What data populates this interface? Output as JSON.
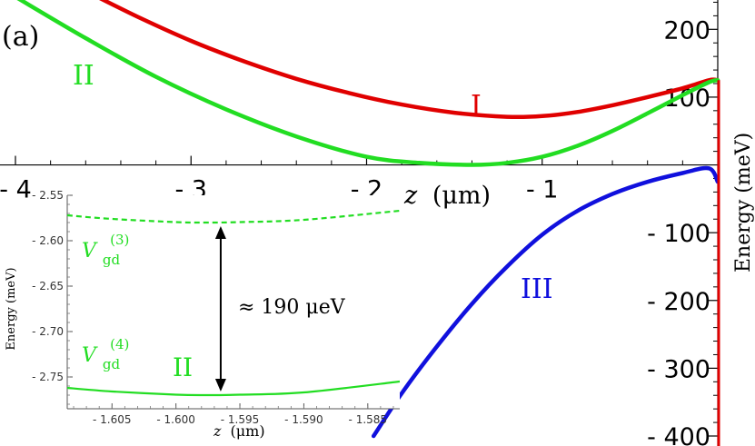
{
  "panel_label": "(a)",
  "chart_data": [
    {
      "type": "line",
      "xlabel_var": "z",
      "xlabel_unit": "(μm)",
      "ylabel": "Energy (meV)",
      "xlim": [
        -4.0,
        0.0
      ],
      "ylim": [
        -400,
        250
      ],
      "x_ticks": [
        -4,
        -3,
        -2,
        -1
      ],
      "x_tick_labels": [
        "- 4",
        "- 3",
        "- 2",
        "- 1"
      ],
      "y_ticks": [
        200,
        100,
        -100,
        -200,
        -300,
        -400
      ],
      "y_tick_labels": [
        "200",
        "100",
        "- 100",
        "- 200",
        "- 300",
        "- 400"
      ],
      "series": [
        {
          "name": "I",
          "color": "#e00000",
          "x": [
            -3.55,
            -3.3,
            -3.0,
            -2.7,
            -2.4,
            -2.1,
            -1.8,
            -1.5,
            -1.2,
            -1.0,
            -0.8,
            -0.6,
            -0.4,
            -0.2,
            -0.05,
            0.0
          ],
          "y": [
            250,
            218,
            183,
            153,
            127,
            106,
            89,
            77,
            71,
            72,
            78,
            88,
            100,
            113,
            125,
            125
          ]
        },
        {
          "name": "II",
          "color": "#22dd22",
          "x": [
            -4.0,
            -3.6,
            -3.2,
            -2.8,
            -2.4,
            -2.0,
            -1.7,
            -1.4,
            -1.2,
            -1.0,
            -0.8,
            -0.6,
            -0.4,
            -0.2,
            -0.05,
            0.0
          ],
          "y": [
            248,
            187,
            130,
            82,
            42,
            12,
            3,
            0,
            3,
            12,
            28,
            50,
            76,
            103,
            122,
            125
          ]
        },
        {
          "name": "III",
          "color": "#1010dd",
          "x": [
            -1.96,
            -1.8,
            -1.6,
            -1.4,
            -1.2,
            -1.0,
            -0.8,
            -0.6,
            -0.4,
            -0.2,
            -0.05,
            0.0
          ],
          "y": [
            -400,
            -337,
            -268,
            -205,
            -150,
            -103,
            -68,
            -43,
            -25,
            -12,
            -5,
            -25
          ]
        }
      ]
    },
    {
      "type": "line",
      "xlabel_var": "z",
      "xlabel_unit": "(μm)",
      "ylabel": "Energy (meV)",
      "xlim": [
        -1.6085,
        -1.5825
      ],
      "ylim": [
        -2.785,
        -2.55
      ],
      "x_ticks": [
        -1.605,
        -1.6,
        -1.595,
        -1.59,
        -1.585
      ],
      "x_tick_labels": [
        "- 1.605",
        "- 1.600",
        "- 1.595",
        "- 1.590",
        "- 1.585"
      ],
      "y_ticks": [
        -2.55,
        -2.6,
        -2.65,
        -2.7,
        -2.75
      ],
      "y_tick_labels": [
        "- 2.55",
        "- 2.60",
        "- 2.65",
        "- 2.70",
        "- 2.75"
      ],
      "series": [
        {
          "name": "V_gd^(3)",
          "color": "#22dd22",
          "style": "dashed",
          "x": [
            -1.6085,
            -1.605,
            -1.6,
            -1.5975,
            -1.595,
            -1.59,
            -1.5825
          ],
          "y": [
            -2.572,
            -2.576,
            -2.5795,
            -2.58,
            -2.5795,
            -2.577,
            -2.567
          ]
        },
        {
          "name": "V_gd^(4)",
          "color": "#22dd22",
          "style": "solid",
          "x": [
            -1.6085,
            -1.605,
            -1.6,
            -1.5975,
            -1.595,
            -1.59,
            -1.5825
          ],
          "y": [
            -2.762,
            -2.766,
            -2.7695,
            -2.77,
            -2.7695,
            -2.767,
            -2.755
          ]
        }
      ],
      "annotation": {
        "text": "≈ 190 μeV",
        "x": -1.5965,
        "y_top": -2.58,
        "y_bottom": -2.77
      }
    }
  ],
  "labels": {
    "curve_I": "I",
    "curve_II": "II",
    "curve_III": "III",
    "inset_curve_II": "II",
    "v3_main": "V",
    "v3_sub": "gd",
    "v3_sup": "(3)",
    "v4_main": "V",
    "v4_sub": "gd",
    "v4_sup": "(4)"
  }
}
